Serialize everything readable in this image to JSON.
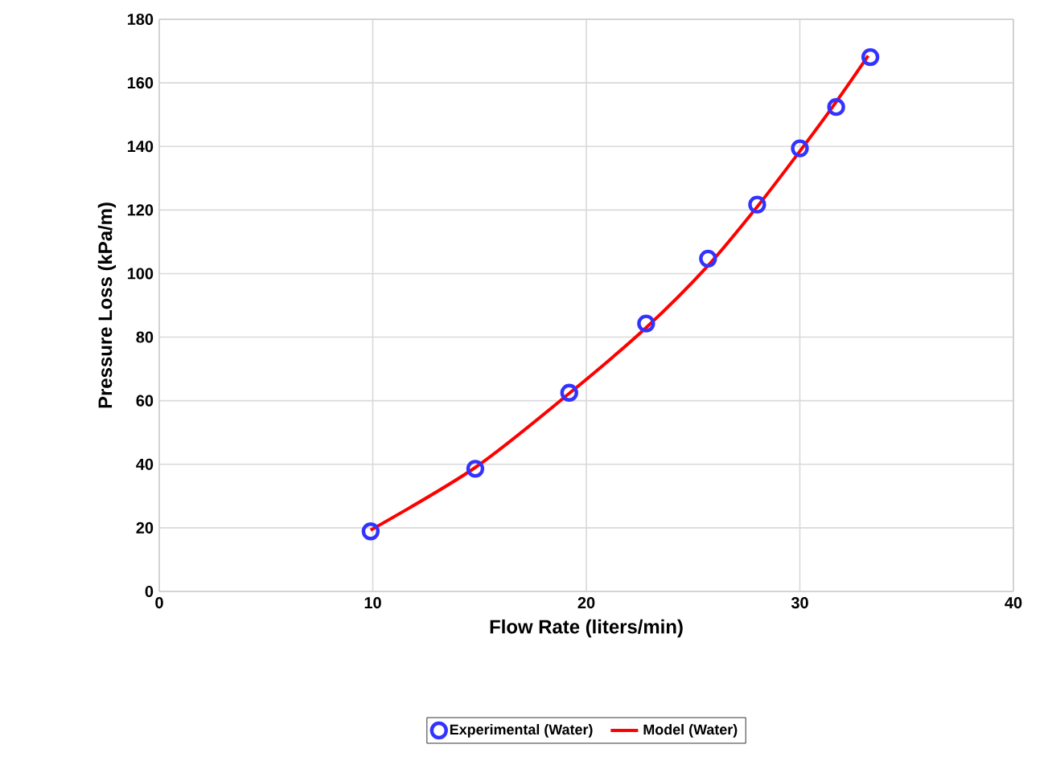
{
  "chart_data": {
    "type": "scatter",
    "xlabel": "Flow Rate (liters/min)",
    "ylabel": "Pressure Loss (kPa/m)",
    "xlim": [
      0,
      40
    ],
    "xticks": [
      0,
      10,
      20,
      30,
      40
    ],
    "ylim": [
      0,
      180
    ],
    "yticks": [
      0,
      20,
      40,
      60,
      80,
      100,
      120,
      140,
      160,
      180
    ],
    "grid": true,
    "legend": "bottom",
    "series": [
      {
        "name": "Experimental (Water)",
        "marker": "circle",
        "color": "#3333ff",
        "x": [
          9.9,
          14.8,
          19.2,
          22.8,
          25.7,
          28.0,
          30.0,
          31.7,
          33.3
        ],
        "values": [
          18.9,
          38.6,
          62.5,
          84.3,
          104.7,
          121.7,
          139.4,
          152.4,
          168.1
        ]
      },
      {
        "name": "Model (Water)",
        "type": "line",
        "marker": "none",
        "line_style": "solid",
        "color": "#ff0000",
        "x": [
          9.9,
          14.8,
          19.2,
          22.8,
          25.7,
          28.0,
          30.0,
          31.7,
          33.2
        ],
        "values": [
          19.3,
          39.0,
          62.3,
          83.0,
          102.5,
          121.0,
          138.5,
          154.0,
          168.5
        ]
      }
    ]
  }
}
